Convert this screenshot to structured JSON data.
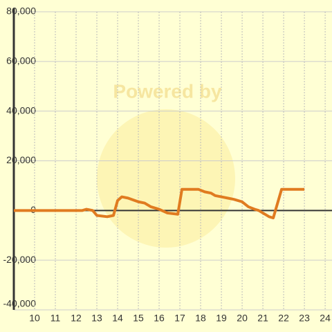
{
  "chart_data": {
    "type": "line",
    "watermark": "Powered by",
    "x": [
      9,
      12.3,
      12.5,
      12.8,
      13,
      13.5,
      13.8,
      14,
      14.2,
      14.5,
      15,
      15.3,
      15.6,
      16,
      16.4,
      16.9,
      17.1,
      17.5,
      17.9,
      18.2,
      18.5,
      18.7,
      19,
      19.3,
      19.6,
      20,
      20.3,
      20.6,
      20.8,
      21,
      21.3,
      21.5,
      21.9,
      22.3,
      23
    ],
    "series": [
      {
        "color": "#e07b20",
        "values": [
          0,
          0,
          500,
          0,
          -2000,
          -2500,
          -2000,
          4000,
          5500,
          5000,
          3500,
          3000,
          1500,
          500,
          -1000,
          -1500,
          8500,
          8500,
          8500,
          7500,
          7000,
          6000,
          5500,
          5000,
          4500,
          3500,
          1500,
          500,
          0,
          -1000,
          -2500,
          -3000,
          8500,
          8500,
          8500
        ]
      }
    ],
    "xlim": [
      9,
      24.33
    ],
    "xticks": [
      10,
      11,
      12,
      13,
      14,
      15,
      16,
      17,
      18,
      19,
      20,
      21,
      22,
      23,
      24
    ],
    "ylim": [
      -40000,
      80000
    ],
    "yticks": [
      {
        "value": -40000,
        "label": "-40,000"
      },
      {
        "value": -20000,
        "label": "-20,000"
      },
      0,
      {
        "value": 20000,
        "label": "20,000"
      },
      {
        "value": 40000,
        "label": "40,000"
      },
      {
        "value": 60000,
        "label": "60,000"
      },
      {
        "value": 80000,
        "label": "80,000"
      }
    ],
    "grid": true
  }
}
